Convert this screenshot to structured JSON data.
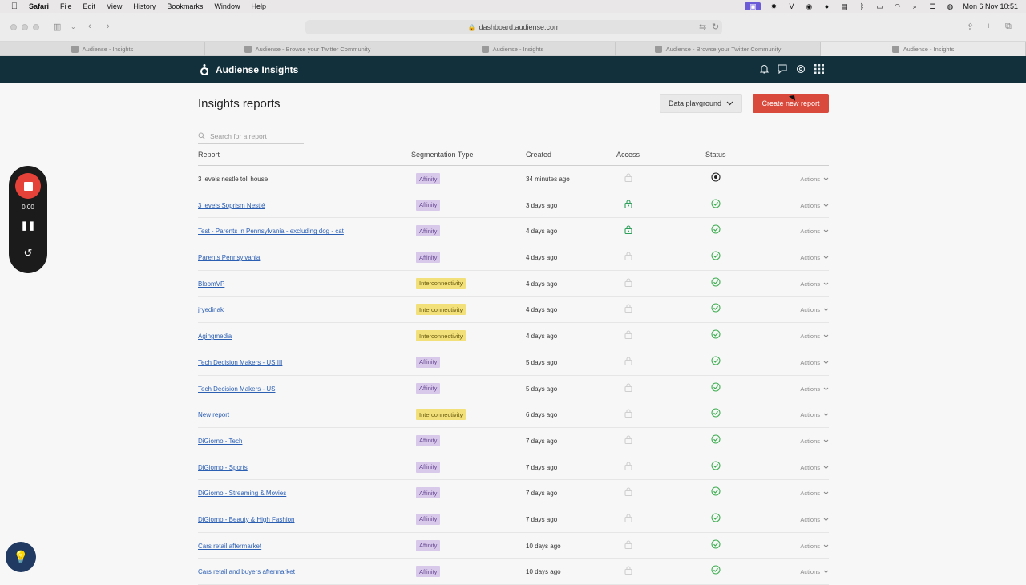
{
  "menubar": {
    "apple": "",
    "items": [
      "Safari",
      "File",
      "Edit",
      "View",
      "History",
      "Bookmarks",
      "Window",
      "Help"
    ],
    "clock": "Mon 6 Nov  10:51"
  },
  "browser": {
    "url": "dashboard.audiense.com",
    "tabs": [
      "Audiense - Insights",
      "Audiense - Browse your Twitter Community",
      "Audiense - Insights",
      "Audiense - Browse your Twitter Community",
      "Audiense - Insights"
    ]
  },
  "app": {
    "brand": "Audiense Insights",
    "title": "Insights reports",
    "data_playground": "Data playground",
    "create_button": "Create new report",
    "search_placeholder": "Search for a report",
    "columns": {
      "report": "Report",
      "segmentation": "Segmentation Type",
      "created": "Created",
      "access": "Access",
      "status": "Status"
    },
    "actions_label": "Actions",
    "rows": [
      {
        "name": "3 levels nestle toll house",
        "seg": "Affinity",
        "created": "34 minutes ago",
        "access": "locked",
        "status": "processing"
      },
      {
        "name": "3 levels Soprism Nestlé",
        "seg": "Affinity",
        "created": "3 days ago",
        "access": "shared",
        "status": "done"
      },
      {
        "name": "Test - Parents in Pennsylvania - excluding dog - cat",
        "seg": "Affinity",
        "created": "4 days ago",
        "access": "shared",
        "status": "done"
      },
      {
        "name": "Parents Pennsylvania",
        "seg": "Affinity",
        "created": "4 days ago",
        "access": "locked",
        "status": "done"
      },
      {
        "name": "BloomVP",
        "seg": "Interconnectivity",
        "created": "4 days ago",
        "access": "locked",
        "status": "done"
      },
      {
        "name": "jryedinak",
        "seg": "Interconnectivity",
        "created": "4 days ago",
        "access": "locked",
        "status": "done"
      },
      {
        "name": "Agingmedia",
        "seg": "Interconnectivity",
        "created": "4 days ago",
        "access": "locked",
        "status": "done"
      },
      {
        "name": "Tech Decision Makers - US III",
        "seg": "Affinity",
        "created": "5 days ago",
        "access": "locked",
        "status": "done"
      },
      {
        "name": "Tech Decision Makers - US",
        "seg": "Affinity",
        "created": "5 days ago",
        "access": "locked",
        "status": "done"
      },
      {
        "name": "New report",
        "seg": "Interconnectivity",
        "created": "6 days ago",
        "access": "locked",
        "status": "done"
      },
      {
        "name": "DiGiorno - Tech",
        "seg": "Affinity",
        "created": "7 days ago",
        "access": "locked",
        "status": "done"
      },
      {
        "name": "DiGiorno - Sports",
        "seg": "Affinity",
        "created": "7 days ago",
        "access": "locked",
        "status": "done"
      },
      {
        "name": "DiGiorno - Streaming & Movies",
        "seg": "Affinity",
        "created": "7 days ago",
        "access": "locked",
        "status": "done"
      },
      {
        "name": "DiGiorno - Beauty & High Fashion",
        "seg": "Affinity",
        "created": "7 days ago",
        "access": "locked",
        "status": "done"
      },
      {
        "name": "Cars retail aftermarket",
        "seg": "Affinity",
        "created": "10 days ago",
        "access": "locked",
        "status": "done"
      },
      {
        "name": "Cars retail and buyers aftermarket",
        "seg": "Affinity",
        "created": "10 days ago",
        "access": "locked",
        "status": "done"
      }
    ]
  },
  "recorder": {
    "time": "0:00"
  },
  "colors": {
    "header_bg": "#12303b",
    "create_button": "#d94a3c",
    "affinity_tag": "#d8c8ea",
    "interconnectivity_tag": "#f2e07a",
    "status_done": "#3fae52",
    "access_shared": "#2e9e5a"
  }
}
